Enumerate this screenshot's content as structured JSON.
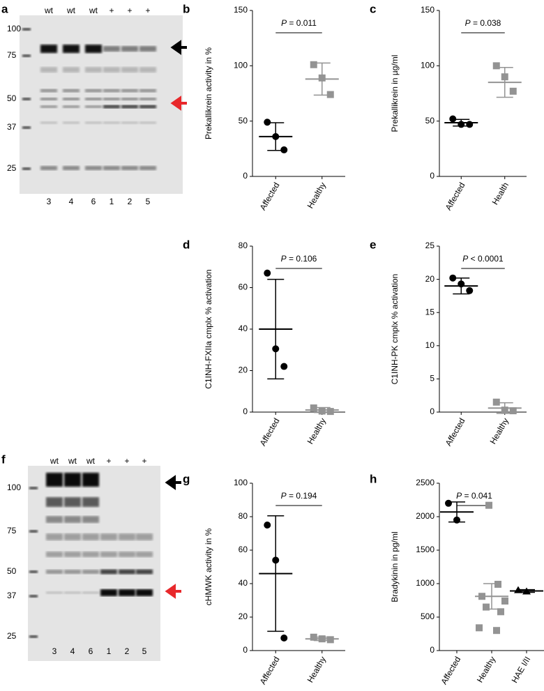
{
  "chart_data": [
    {
      "type": "blot",
      "panel": "a",
      "markers": [
        100,
        75,
        50,
        37,
        25
      ],
      "top_labels": [
        "wt",
        "wt",
        "wt",
        "+",
        "+",
        "+"
      ],
      "lanes": [
        "3",
        "4",
        "6",
        "1",
        "2",
        "5"
      ]
    },
    {
      "type": "dot",
      "panel": "b",
      "ylabel": "Prekallikrein activity in %",
      "annotation": "P = 0.011",
      "ylim": [
        0,
        150
      ],
      "yticks": [
        0,
        50,
        100,
        150
      ],
      "series": [
        {
          "name": "Affected",
          "color": "#000000",
          "marker": "circle",
          "values": [
            49,
            36,
            24
          ],
          "mean": 36,
          "sd": 12.5
        },
        {
          "name": "Healthy",
          "color": "#939393",
          "marker": "square",
          "values": [
            101,
            89,
            74
          ],
          "mean": 88,
          "sd": 14.5
        }
      ]
    },
    {
      "type": "dot",
      "panel": "c",
      "ylabel": "Prekallikrein in µg/ml",
      "annotation": "P = 0.038",
      "ylim": [
        0,
        150
      ],
      "yticks": [
        0,
        50,
        100,
        150
      ],
      "series": [
        {
          "name": "Affected",
          "color": "#000000",
          "marker": "circle",
          "values": [
            52,
            47,
            47
          ],
          "mean": 48.5,
          "sd": 3
        },
        {
          "name": "Health",
          "color": "#939393",
          "marker": "square",
          "values": [
            100,
            90,
            77
          ],
          "mean": 85,
          "sd": 13.5
        }
      ]
    },
    {
      "type": "dot",
      "panel": "d",
      "ylabel": "C1INH-FXIIa cmplx % activation",
      "annotation": "P = 0.106",
      "ylim": [
        0,
        80
      ],
      "yticks": [
        0,
        20,
        40,
        60,
        80
      ],
      "series": [
        {
          "name": "Affected",
          "color": "#000000",
          "marker": "circle",
          "values": [
            67,
            30.5,
            22
          ],
          "mean": 40,
          "sd": 24
        },
        {
          "name": "Healthy",
          "color": "#939393",
          "marker": "square",
          "values": [
            2,
            0.5,
            0.3
          ],
          "mean": 1,
          "sd": 1.2
        }
      ]
    },
    {
      "type": "dot",
      "panel": "e",
      "ylabel": "C1INH-PK cmplx % activation",
      "annotation": "P < 0.0001",
      "ylim": [
        0,
        25
      ],
      "yticks": [
        0,
        5,
        10,
        15,
        20,
        25
      ],
      "series": [
        {
          "name": "Affected",
          "color": "#000000",
          "marker": "circle",
          "values": [
            20.2,
            19.3,
            18.3
          ],
          "mean": 19,
          "sd": 1.2
        },
        {
          "name": "Healthy",
          "color": "#939393",
          "marker": "square",
          "values": [
            1.5,
            0.3,
            0.2
          ],
          "mean": 0.6,
          "sd": 0.8
        }
      ]
    },
    {
      "type": "blot",
      "panel": "f",
      "markers": [
        100,
        75,
        50,
        37,
        25
      ],
      "top_labels": [
        "wt",
        "wt",
        "wt",
        "+",
        "+",
        "+"
      ],
      "lanes": [
        "3",
        "4",
        "6",
        "1",
        "2",
        "5"
      ]
    },
    {
      "type": "dot",
      "panel": "g",
      "ylabel": "cHMWK activity in %",
      "annotation": "P = 0.194",
      "ylim": [
        0,
        100
      ],
      "yticks": [
        0,
        20,
        40,
        60,
        80,
        100
      ],
      "series": [
        {
          "name": "Affected",
          "color": "#000000",
          "marker": "circle",
          "values": [
            75,
            54,
            7.5
          ],
          "mean": 46,
          "sd": 34.5
        },
        {
          "name": "Healthy",
          "color": "#939393",
          "marker": "square",
          "values": [
            8,
            7,
            6.5
          ],
          "mean": 7,
          "sd": 1
        }
      ]
    },
    {
      "type": "dot",
      "panel": "h",
      "ylabel": "Bradykinin in pg/ml",
      "annotation": "P = 0.041",
      "ylim": [
        0,
        2500
      ],
      "yticks": [
        0,
        500,
        1000,
        1500,
        2000,
        2500
      ],
      "series": [
        {
          "name": "Affected",
          "color": "#000000",
          "marker": "circle",
          "values": [
            2200,
            1950
          ],
          "mean": 2070,
          "sd": 150
        },
        {
          "name": "Healthy",
          "color": "#939393",
          "marker": "square",
          "values": [
            2170,
            990,
            810,
            740,
            650,
            580,
            340,
            300
          ],
          "mean": 810,
          "sd": 190
        },
        {
          "name": "HAE I/II",
          "color": "#000000",
          "marker": "triangle",
          "values": [
            900,
            880
          ],
          "mean": 890,
          "sd": 20
        }
      ]
    }
  ]
}
